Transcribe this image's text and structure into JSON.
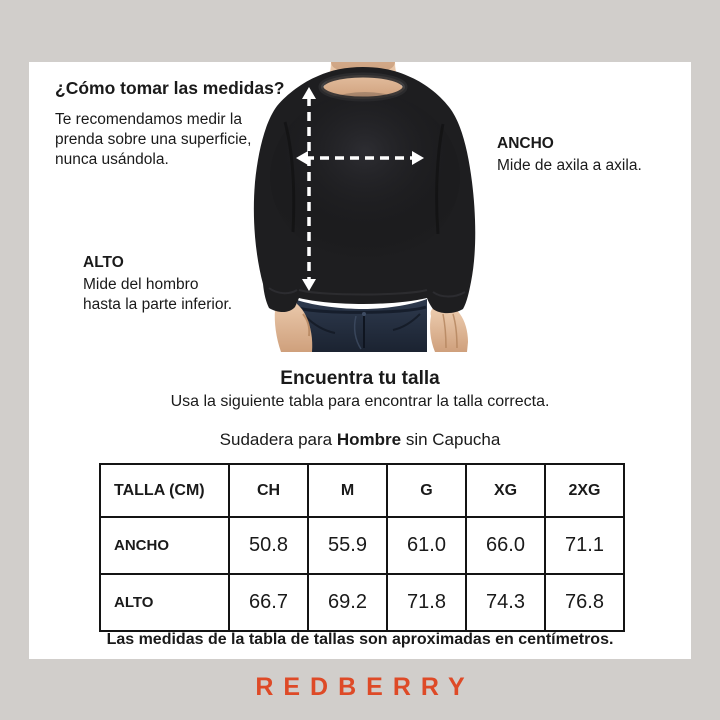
{
  "page": {
    "background_color": "#d1cecb",
    "card_color": "#ffffff"
  },
  "measure_guide": {
    "title": "¿Cómo tomar las medidas?",
    "intro": "Te recomendamos medir la\nprenda sobre una superficie,\nnunca usándola.",
    "ancho": {
      "label": "ANCHO",
      "description": "Mide de axila a axila."
    },
    "alto": {
      "label": "ALTO",
      "description": "Mide del hombro\nhasta la parte inferior."
    },
    "arrow_color": "#ffffff"
  },
  "size_finder": {
    "title": "Encuentra tu talla",
    "subtitle": "Usa la siguiente tabla para encontrar la talla correcta.",
    "product_prefix": "Sudadera para ",
    "product_bold": "Hombre",
    "product_suffix": " sin Capucha"
  },
  "size_table": {
    "header": [
      "TALLA (CM)",
      "CH",
      "M",
      "G",
      "XG",
      "2XG"
    ],
    "rows": [
      {
        "label": "ANCHO",
        "values": [
          "50.8",
          "55.9",
          "61.0",
          "66.0",
          "71.1"
        ]
      },
      {
        "label": "ALTO",
        "values": [
          "66.7",
          "69.2",
          "71.8",
          "74.3",
          "76.8"
        ]
      }
    ],
    "footnote": "Las medidas de la tabla de tallas son aproximadas en centímetros."
  },
  "brand": {
    "logo_text": "REDBERRY",
    "logo_color": "#de4a27"
  }
}
